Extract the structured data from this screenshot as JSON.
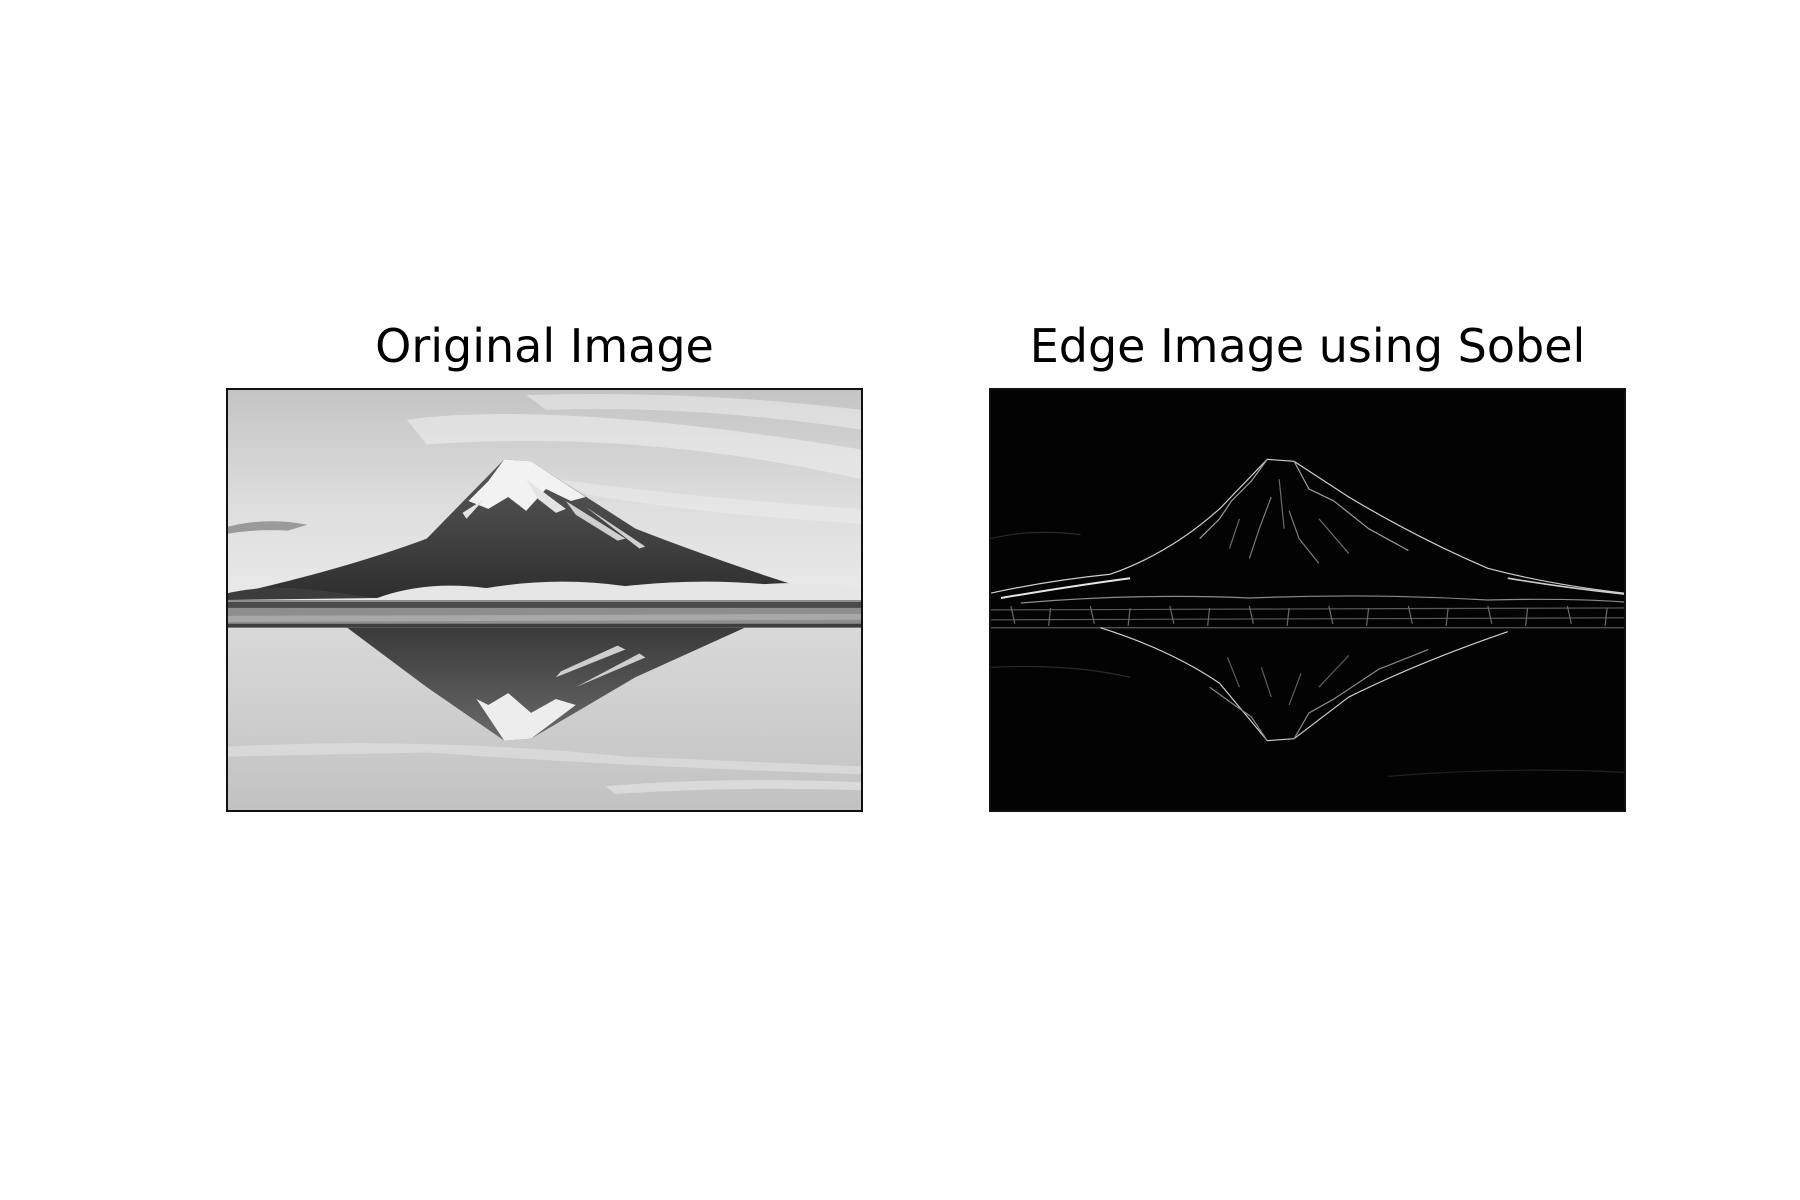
{
  "figure": {
    "panels": [
      {
        "title": "Original Image"
      },
      {
        "title": "Edge Image using Sobel"
      }
    ]
  },
  "colors": {
    "background": "#ffffff",
    "frame": "#111111",
    "edge_background": "#030303",
    "edge_lines": "#cfcfcf"
  }
}
